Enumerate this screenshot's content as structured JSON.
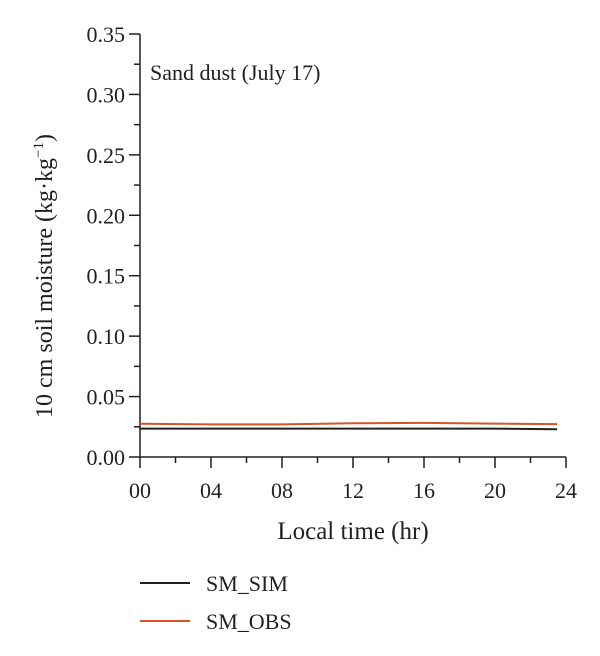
{
  "chart_data": {
    "type": "line",
    "annotation": "Sand dust (July 17)",
    "xlabel": "Local time (hr)",
    "ylabel": "10 cm soil moisture (kg·kg",
    "ylabel_sup": "−1",
    "ylabel_end": ")",
    "xlim": [
      0,
      24
    ],
    "ylim": [
      0,
      0.35
    ],
    "x_ticks": [
      0,
      4,
      8,
      12,
      16,
      20,
      24
    ],
    "x_tick_labels": [
      "00",
      "04",
      "08",
      "12",
      "16",
      "20",
      "24"
    ],
    "y_ticks": [
      0.0,
      0.05,
      0.1,
      0.15,
      0.2,
      0.25,
      0.3,
      0.35
    ],
    "y_tick_labels": [
      "0.00",
      "0.05",
      "0.10",
      "0.15",
      "0.20",
      "0.25",
      "0.30",
      "0.35"
    ],
    "grid": false,
    "legend_position": "bottom-left",
    "series": [
      {
        "name": "SM_SIM",
        "color": "#231f20",
        "x": [
          0,
          4,
          8,
          12,
          16,
          20,
          23.5
        ],
        "y": [
          0.0235,
          0.0235,
          0.0235,
          0.0235,
          0.0235,
          0.0235,
          0.023
        ]
      },
      {
        "name": "SM_OBS",
        "color": "#d9541e",
        "x": [
          0,
          4,
          8,
          12,
          16,
          20,
          23.5
        ],
        "y": [
          0.0275,
          0.027,
          0.027,
          0.028,
          0.0282,
          0.0276,
          0.0272
        ]
      }
    ]
  }
}
